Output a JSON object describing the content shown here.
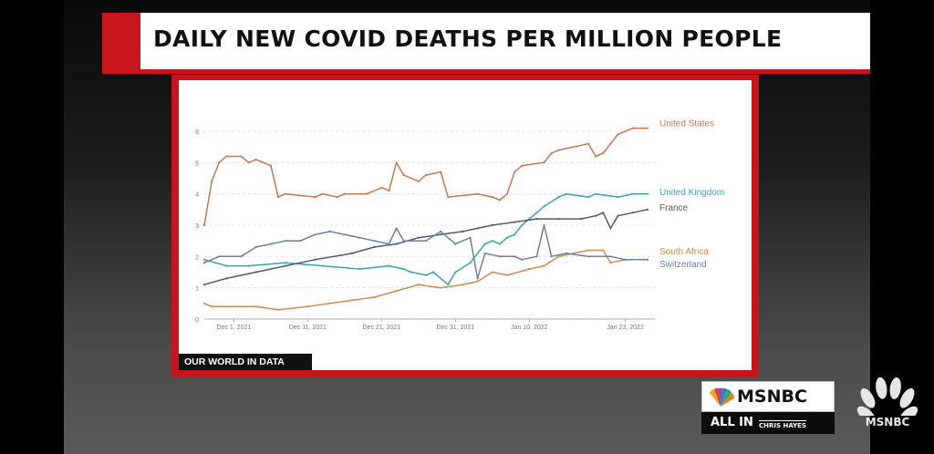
{
  "header": {
    "title": "DAILY NEW COVID DEATHS PER MILLION PEOPLE"
  },
  "source_tag": "OUR WORLD IN DATA",
  "network": {
    "brand": "MSNBC",
    "show": "ALL IN",
    "host": "CHRIS HAYES",
    "corner_brand": "MSNBC"
  },
  "colors": {
    "accent": "#c8141c",
    "us": "#c9774f",
    "uk": "#3aa6a6",
    "france": "#4e5a75",
    "south_africa": "#d08a52",
    "switzerland": "#6e7e9e"
  },
  "chart_data": {
    "type": "line",
    "title": "",
    "xlabel": "",
    "ylabel": "",
    "ylim": [
      0,
      6
    ],
    "xlim": [
      "2021-11-27",
      "2022-01-27"
    ],
    "yticks": [
      0,
      1,
      2,
      3,
      4,
      5,
      6
    ],
    "xticks": [
      {
        "date": "2021-12-01",
        "label": "Dec 1, 2021"
      },
      {
        "date": "2021-12-11",
        "label": "Dec 11, 2021"
      },
      {
        "date": "2021-12-21",
        "label": "Dec 21, 2021"
      },
      {
        "date": "2021-12-31",
        "label": "Dec 31, 2021"
      },
      {
        "date": "2022-01-10",
        "label": "Jan 10, 2022"
      },
      {
        "date": "2022-01-23",
        "label": "Jan 23, 2022"
      }
    ],
    "grid": "horizontal-dashed",
    "series": [
      {
        "name": "United States",
        "color": "#c9774f",
        "points": [
          [
            "2021-11-27",
            3.0
          ],
          [
            "2021-11-28",
            4.4
          ],
          [
            "2021-11-29",
            5.0
          ],
          [
            "2021-11-30",
            5.2
          ],
          [
            "2021-12-02",
            5.2
          ],
          [
            "2021-12-03",
            5.0
          ],
          [
            "2021-12-04",
            5.1
          ],
          [
            "2021-12-06",
            4.9
          ],
          [
            "2021-12-07",
            3.9
          ],
          [
            "2021-12-08",
            4.0
          ],
          [
            "2021-12-12",
            3.9
          ],
          [
            "2021-12-13",
            4.0
          ],
          [
            "2021-12-15",
            3.9
          ],
          [
            "2021-12-16",
            4.0
          ],
          [
            "2021-12-19",
            4.0
          ],
          [
            "2021-12-21",
            4.2
          ],
          [
            "2021-12-22",
            4.1
          ],
          [
            "2021-12-23",
            5.0
          ],
          [
            "2021-12-24",
            4.6
          ],
          [
            "2021-12-26",
            4.4
          ],
          [
            "2021-12-27",
            4.6
          ],
          [
            "2021-12-29",
            4.7
          ],
          [
            "2021-12-30",
            3.9
          ],
          [
            "2022-01-03",
            4.0
          ],
          [
            "2022-01-05",
            3.9
          ],
          [
            "2022-01-06",
            3.8
          ],
          [
            "2022-01-07",
            4.0
          ],
          [
            "2022-01-08",
            4.7
          ],
          [
            "2022-01-09",
            4.9
          ],
          [
            "2022-01-12",
            5.0
          ],
          [
            "2022-01-13",
            5.3
          ],
          [
            "2022-01-14",
            5.4
          ],
          [
            "2022-01-18",
            5.6
          ],
          [
            "2022-01-19",
            5.2
          ],
          [
            "2022-01-20",
            5.3
          ],
          [
            "2022-01-21",
            5.6
          ],
          [
            "2022-01-22",
            5.9
          ],
          [
            "2022-01-24",
            6.1
          ],
          [
            "2022-01-26",
            6.1
          ]
        ]
      },
      {
        "name": "United Kingdom",
        "color": "#3aa6a6",
        "points": [
          [
            "2021-11-27",
            1.9
          ],
          [
            "2021-11-30",
            1.7
          ],
          [
            "2021-12-03",
            1.7
          ],
          [
            "2021-12-08",
            1.8
          ],
          [
            "2021-12-13",
            1.7
          ],
          [
            "2021-12-18",
            1.6
          ],
          [
            "2021-12-22",
            1.7
          ],
          [
            "2021-12-24",
            1.6
          ],
          [
            "2021-12-25",
            1.5
          ],
          [
            "2021-12-27",
            1.4
          ],
          [
            "2021-12-28",
            1.5
          ],
          [
            "2021-12-30",
            1.1
          ],
          [
            "2021-12-31",
            1.5
          ],
          [
            "2022-01-02",
            1.8
          ],
          [
            "2022-01-04",
            2.4
          ],
          [
            "2022-01-05",
            2.5
          ],
          [
            "2022-01-06",
            2.4
          ],
          [
            "2022-01-07",
            2.6
          ],
          [
            "2022-01-08",
            2.7
          ],
          [
            "2022-01-09",
            3.0
          ],
          [
            "2022-01-10",
            3.2
          ],
          [
            "2022-01-11",
            3.4
          ],
          [
            "2022-01-12",
            3.6
          ],
          [
            "2022-01-14",
            3.9
          ],
          [
            "2022-01-15",
            4.0
          ],
          [
            "2022-01-18",
            3.9
          ],
          [
            "2022-01-19",
            4.0
          ],
          [
            "2022-01-22",
            3.9
          ],
          [
            "2022-01-24",
            4.0
          ],
          [
            "2022-01-26",
            4.0
          ]
        ]
      },
      {
        "name": "France",
        "color": "#4e5a75",
        "points": [
          [
            "2021-11-27",
            1.1
          ],
          [
            "2021-11-30",
            1.3
          ],
          [
            "2021-12-04",
            1.5
          ],
          [
            "2021-12-08",
            1.7
          ],
          [
            "2021-12-12",
            1.9
          ],
          [
            "2021-12-17",
            2.1
          ],
          [
            "2021-12-20",
            2.3
          ],
          [
            "2021-12-23",
            2.4
          ],
          [
            "2021-12-26",
            2.6
          ],
          [
            "2021-12-29",
            2.7
          ],
          [
            "2022-01-01",
            2.8
          ],
          [
            "2022-01-03",
            2.9
          ],
          [
            "2022-01-05",
            3.0
          ],
          [
            "2022-01-08",
            3.1
          ],
          [
            "2022-01-11",
            3.2
          ],
          [
            "2022-01-14",
            3.2
          ],
          [
            "2022-01-17",
            3.2
          ],
          [
            "2022-01-19",
            3.3
          ],
          [
            "2022-01-20",
            3.4
          ],
          [
            "2022-01-21",
            2.9
          ],
          [
            "2022-01-22",
            3.3
          ],
          [
            "2022-01-24",
            3.4
          ],
          [
            "2022-01-26",
            3.5
          ]
        ]
      },
      {
        "name": "South Africa",
        "color": "#d08a52",
        "points": [
          [
            "2021-11-27",
            0.5
          ],
          [
            "2021-11-28",
            0.4
          ],
          [
            "2021-12-01",
            0.4
          ],
          [
            "2021-12-04",
            0.4
          ],
          [
            "2021-12-07",
            0.3
          ],
          [
            "2021-12-11",
            0.4
          ],
          [
            "2021-12-14",
            0.5
          ],
          [
            "2021-12-17",
            0.6
          ],
          [
            "2021-12-20",
            0.7
          ],
          [
            "2021-12-23",
            0.9
          ],
          [
            "2021-12-26",
            1.1
          ],
          [
            "2021-12-29",
            1.0
          ],
          [
            "2022-01-01",
            1.1
          ],
          [
            "2022-01-03",
            1.2
          ],
          [
            "2022-01-05",
            1.5
          ],
          [
            "2022-01-07",
            1.4
          ],
          [
            "2022-01-10",
            1.6
          ],
          [
            "2022-01-12",
            1.7
          ],
          [
            "2022-01-14",
            2.0
          ],
          [
            "2022-01-16",
            2.1
          ],
          [
            "2022-01-18",
            2.2
          ],
          [
            "2022-01-20",
            2.2
          ],
          [
            "2022-01-21",
            1.8
          ],
          [
            "2022-01-23",
            1.9
          ],
          [
            "2022-01-26",
            1.9
          ]
        ]
      },
      {
        "name": "Switzerland",
        "color": "#6e7e9e",
        "points": [
          [
            "2021-11-27",
            1.8
          ],
          [
            "2021-11-29",
            2.0
          ],
          [
            "2021-12-02",
            2.0
          ],
          [
            "2021-12-04",
            2.3
          ],
          [
            "2021-12-06",
            2.4
          ],
          [
            "2021-12-08",
            2.5
          ],
          [
            "2021-12-10",
            2.5
          ],
          [
            "2021-12-12",
            2.7
          ],
          [
            "2021-12-14",
            2.8
          ],
          [
            "2021-12-16",
            2.7
          ],
          [
            "2021-12-18",
            2.6
          ],
          [
            "2021-12-20",
            2.5
          ],
          [
            "2021-12-22",
            2.4
          ],
          [
            "2021-12-23",
            2.9
          ],
          [
            "2021-12-24",
            2.5
          ],
          [
            "2021-12-27",
            2.5
          ],
          [
            "2021-12-29",
            2.8
          ],
          [
            "2021-12-31",
            2.4
          ],
          [
            "2022-01-02",
            2.6
          ],
          [
            "2022-01-03",
            1.3
          ],
          [
            "2022-01-04",
            2.1
          ],
          [
            "2022-01-06",
            2.0
          ],
          [
            "2022-01-08",
            2.0
          ],
          [
            "2022-01-09",
            1.9
          ],
          [
            "2022-01-11",
            2.0
          ],
          [
            "2022-01-12",
            3.0
          ],
          [
            "2022-01-13",
            2.0
          ],
          [
            "2022-01-15",
            2.1
          ],
          [
            "2022-01-18",
            2.0
          ],
          [
            "2022-01-21",
            2.0
          ],
          [
            "2022-01-23",
            1.9
          ],
          [
            "2022-01-26",
            1.9
          ]
        ]
      }
    ]
  }
}
